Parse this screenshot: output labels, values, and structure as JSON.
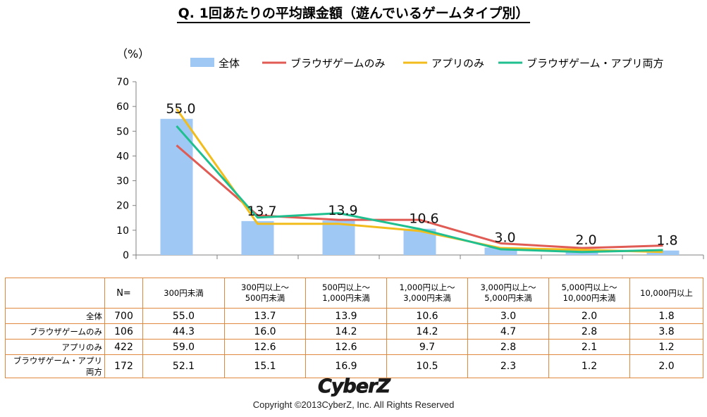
{
  "title": "Q. 1回あたりの平均課金額（遊んでいるゲームタイプ別）",
  "chart_data": {
    "type": "bar",
    "title": "Q. 1回あたりの平均課金額（遊んでいるゲームタイプ別）",
    "ylabel": "（%）",
    "ylim": [
      0,
      70
    ],
    "yticks": [
      0,
      10,
      20,
      30,
      40,
      50,
      60,
      70
    ],
    "categories": [
      "300円未満",
      "300円以上～500円未満",
      "500円以上～1,000円未満",
      "1,000円以上～3,000円未満",
      "3,000円以上～5,000円未満",
      "5,000円以上～10,000円未満",
      "10,000円以上"
    ],
    "bar_series": {
      "name": "全体",
      "color": "#9fc9f4",
      "values": [
        55.0,
        13.7,
        13.9,
        10.6,
        3.0,
        2.0,
        1.8
      ],
      "labels": [
        "55.0",
        "13.7",
        "13.9",
        "10.6",
        "3.0",
        "2.0",
        "1.8"
      ]
    },
    "line_series": [
      {
        "name": "ブラウザゲームのみ",
        "color": "#e05b54",
        "values": [
          44.3,
          16.0,
          14.2,
          14.2,
          4.7,
          2.8,
          3.8
        ]
      },
      {
        "name": "アプリのみ",
        "color": "#f2bd1c",
        "values": [
          59.0,
          12.6,
          12.6,
          9.7,
          2.8,
          2.1,
          1.2
        ]
      },
      {
        "name": "ブラウザゲーム・アプリ両方",
        "color": "#1fbf8f",
        "values": [
          52.1,
          15.1,
          16.9,
          10.5,
          2.3,
          1.2,
          2.0
        ]
      }
    ],
    "legend_position": "top"
  },
  "table": {
    "n_header": "N=",
    "columns": [
      [
        "300円未満"
      ],
      [
        "300円以上～",
        "500円未満"
      ],
      [
        "500円以上～",
        "1,000円未満"
      ],
      [
        "1,000円以上～",
        "3,000円未満"
      ],
      [
        "3,000円以上～",
        "5,000円未満"
      ],
      [
        "5,000円以上～",
        "10,000円未満"
      ],
      [
        "10,000円以上"
      ]
    ],
    "rows": [
      {
        "label": "全体",
        "n": "700",
        "values": [
          "55.0",
          "13.7",
          "13.9",
          "10.6",
          "3.0",
          "2.0",
          "1.8"
        ]
      },
      {
        "label": "ブラウザゲームのみ",
        "n": "106",
        "values": [
          "44.3",
          "16.0",
          "14.2",
          "14.2",
          "4.7",
          "2.8",
          "3.8"
        ]
      },
      {
        "label": "アプリのみ",
        "n": "422",
        "values": [
          "59.0",
          "12.6",
          "12.6",
          "9.7",
          "2.8",
          "2.1",
          "1.2"
        ]
      },
      {
        "label": "ブラウザゲーム・アプリ両方",
        "n": "172",
        "values": [
          "52.1",
          "15.1",
          "16.9",
          "10.5",
          "2.3",
          "1.2",
          "2.0"
        ]
      }
    ]
  },
  "logo_text": "CyberZ",
  "copyright": "Copyright ©2013CyberZ, Inc.  All Rights Reserved"
}
